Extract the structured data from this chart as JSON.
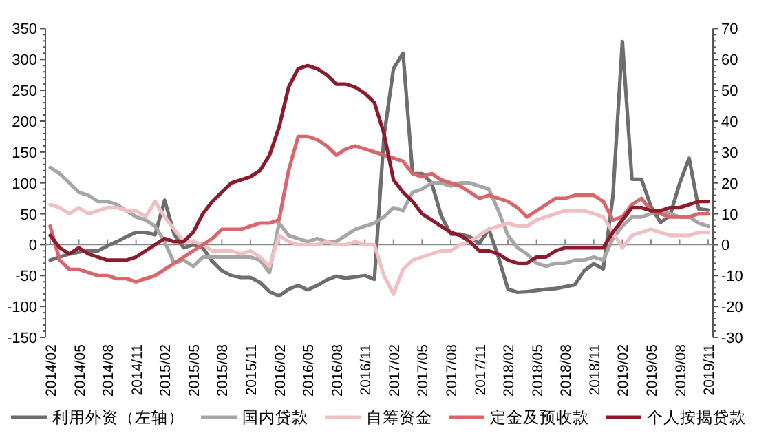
{
  "chart_data": {
    "type": "line",
    "categories": [
      "2014/02",
      null,
      null,
      "2014/05",
      null,
      null,
      "2014/08",
      null,
      null,
      "2014/11",
      null,
      null,
      "2015/02",
      null,
      null,
      "2015/05",
      null,
      null,
      "2015/08",
      null,
      null,
      "2015/11",
      null,
      null,
      "2016/02",
      null,
      null,
      "2016/05",
      null,
      null,
      "2016/08",
      null,
      null,
      "2016/11",
      null,
      null,
      "2017/02",
      null,
      null,
      "2017/05",
      null,
      null,
      "2017/08",
      null,
      null,
      "2017/11",
      null,
      null,
      "2018/02",
      null,
      null,
      "2018/05",
      null,
      null,
      "2018/08",
      null,
      null,
      "2018/11",
      null,
      null,
      "2019/02",
      null,
      null,
      "2019/05",
      null,
      null,
      "2019/08",
      null,
      null,
      "2019/11"
    ],
    "series": [
      {
        "name": "利用外资（左轴）",
        "color": "#6e6e6e",
        "values": [
          -25,
          -20,
          -15,
          -12,
          -10,
          -10,
          -2,
          5,
          13,
          20,
          20,
          16,
          72,
          17,
          -5,
          0,
          -5,
          -27,
          -42,
          -50,
          -53,
          -53,
          -61,
          -76,
          -83,
          -72,
          -66,
          -73,
          -66,
          -57,
          -51,
          -54,
          -52,
          -50,
          -56,
          175,
          285,
          310,
          115,
          115,
          100,
          47,
          17,
          17,
          13,
          2,
          25,
          -20,
          -72,
          -77,
          -76,
          -74,
          -72,
          -71,
          -68,
          -65,
          -42,
          -31,
          -39,
          77,
          329,
          106,
          106,
          62,
          36,
          47,
          99,
          140,
          58,
          56
        ]
      },
      {
        "name": "国内贷款",
        "color": "#a6a6a6",
        "axis": "y2",
        "values": [
          25,
          23,
          20,
          17,
          16,
          14,
          14,
          13,
          11,
          9,
          8,
          6,
          1,
          -6,
          -5,
          -7,
          -4,
          -4,
          -4,
          -4,
          -4,
          -4,
          -5,
          -9,
          7,
          3,
          2,
          1,
          2,
          1,
          1,
          3,
          5,
          6,
          7,
          9,
          12,
          11,
          17,
          18,
          20,
          20,
          19,
          20,
          20,
          19,
          18,
          11,
          3,
          -1,
          -3,
          -6,
          -7,
          -6,
          -6,
          -5,
          -5,
          -4,
          -5,
          2,
          6,
          9,
          9,
          10,
          11,
          10,
          9,
          9,
          7,
          6
        ]
      },
      {
        "name": "自筹资金",
        "color": "#efbfc3",
        "axis": "y2",
        "values": [
          13,
          12,
          10,
          12,
          10,
          11,
          12,
          12,
          11,
          11,
          9,
          14,
          9,
          5,
          1,
          1,
          0,
          -2,
          -2,
          -2,
          -3,
          -2,
          -4,
          -7,
          3,
          1,
          0,
          0,
          0,
          1,
          0,
          0,
          1,
          0,
          0,
          -10,
          -16,
          -8,
          -5,
          -4,
          -3,
          -2,
          -2,
          0,
          1,
          3,
          5,
          6,
          7,
          6,
          6,
          8,
          9,
          10,
          11,
          11,
          11,
          10,
          9,
          4,
          -1,
          3,
          4,
          5,
          4,
          3,
          3,
          3,
          4,
          4
        ]
      },
      {
        "name": "定金及预收款",
        "color": "#d8666b",
        "axis": "y2",
        "values": [
          6,
          -5,
          -8,
          -8,
          -9,
          -10,
          -10,
          -11,
          -11,
          -12,
          -11,
          -10,
          -8,
          -6,
          -4,
          -2,
          0,
          2,
          5,
          5,
          5,
          6,
          7,
          7,
          8,
          24,
          35,
          35,
          34,
          32,
          29,
          31,
          32,
          31,
          30,
          29,
          28,
          27,
          23,
          22,
          23,
          21,
          20,
          19,
          17,
          15,
          16,
          15,
          14,
          12,
          9,
          11,
          13,
          15,
          15,
          16,
          16,
          16,
          14,
          8,
          9,
          13,
          15,
          11,
          10,
          9,
          9,
          9,
          10,
          10
        ]
      },
      {
        "name": "个人按揭贷款",
        "color": "#8c1c2c",
        "axis": "y2",
        "values": [
          3,
          -1,
          -3,
          -1,
          -3,
          -4,
          -5,
          -5,
          -5,
          -4,
          -2,
          0,
          2,
          1,
          1,
          4,
          10,
          14,
          17,
          20,
          21,
          22,
          24,
          29,
          38,
          51,
          57,
          58,
          57,
          55,
          52,
          52,
          51,
          49,
          46,
          36,
          21,
          17,
          14,
          10,
          8,
          6,
          4,
          3,
          1,
          -2,
          -2,
          -3,
          -5,
          -6,
          -6,
          -4,
          -4,
          -2,
          -1,
          -1,
          -1,
          -1,
          -1,
          4,
          8,
          12,
          12,
          11,
          11,
          12,
          12,
          13,
          14,
          14
        ]
      }
    ],
    "ylim": [
      -150,
      350
    ],
    "yticks": [
      -150,
      -100,
      -50,
      0,
      50,
      100,
      150,
      200,
      250,
      300,
      350
    ],
    "y2lim": [
      -30,
      70
    ],
    "y2ticks": [
      -30,
      -20,
      -10,
      0,
      10,
      20,
      30,
      40,
      50,
      60,
      70
    ],
    "legend": "bottom",
    "line_style": "solid"
  }
}
